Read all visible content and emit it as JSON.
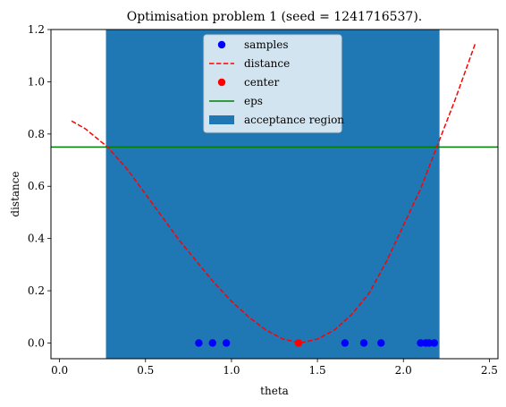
{
  "chart_data": {
    "type": "scatter",
    "title": "Optimisation problem 1 (seed = 1241716537).",
    "xlabel": "theta",
    "ylabel": "distance",
    "xlim": [
      -0.05,
      2.55
    ],
    "ylim": [
      -0.06,
      1.2
    ],
    "xticks": [
      0.0,
      0.5,
      1.0,
      1.5,
      2.0,
      2.5
    ],
    "xtick_labels": [
      "0.0",
      "0.5",
      "1.0",
      "1.5",
      "2.0",
      "2.5"
    ],
    "yticks": [
      0.0,
      0.2,
      0.4,
      0.6,
      0.8,
      1.0,
      1.2
    ],
    "ytick_labels": [
      "0.0",
      "0.2",
      "0.4",
      "0.6",
      "0.8",
      "1.0",
      "1.2"
    ],
    "legend_position": "upper center",
    "colors": {
      "samples": "#0000ff",
      "distance": "#ff0000",
      "center": "#ff0000",
      "eps": "#008000",
      "acceptance_region": "#1f77b4"
    },
    "series": [
      {
        "name": "samples",
        "kind": "scatter",
        "x": [
          0.81,
          0.89,
          0.97,
          1.66,
          1.77,
          1.87,
          2.1,
          2.13,
          2.15,
          2.18
        ],
        "y": [
          0,
          0,
          0,
          0,
          0,
          0,
          0,
          0,
          0,
          0
        ]
      },
      {
        "name": "distance",
        "kind": "line",
        "style": "dashed",
        "x": [
          0.07,
          0.15,
          0.28,
          0.4,
          0.5,
          0.6,
          0.7,
          0.8,
          0.9,
          1.0,
          1.1,
          1.2,
          1.3,
          1.4,
          1.5,
          1.6,
          1.7,
          1.8,
          1.9,
          2.0,
          2.1,
          2.2,
          2.3,
          2.42
        ],
        "y": [
          0.85,
          0.82,
          0.75,
          0.66,
          0.57,
          0.48,
          0.39,
          0.31,
          0.23,
          0.16,
          0.1,
          0.05,
          0.015,
          0.0,
          0.015,
          0.05,
          0.11,
          0.19,
          0.31,
          0.45,
          0.59,
          0.76,
          0.93,
          1.15
        ]
      },
      {
        "name": "center",
        "kind": "scatter",
        "x": [
          1.39
        ],
        "y": [
          0
        ]
      },
      {
        "name": "eps",
        "kind": "hline",
        "y": 0.75
      },
      {
        "name": "acceptance region",
        "kind": "span",
        "x_range": [
          0.27,
          2.21
        ]
      }
    ]
  }
}
